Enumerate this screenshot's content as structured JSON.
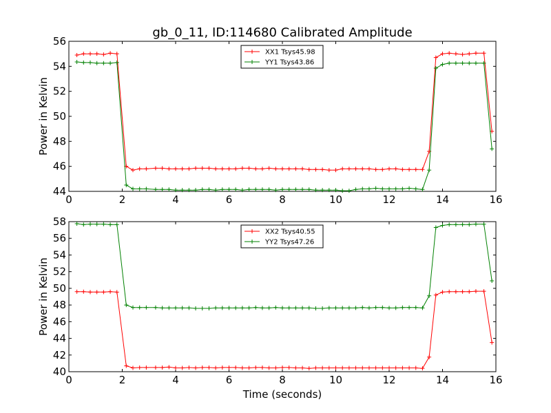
{
  "title": "gb_0_11, ID:114680 Calibrated Amplitude",
  "xlabel": "Time (seconds)",
  "chart_data": [
    {
      "type": "line",
      "title": "gb_0_11, ID:114680 Calibrated Amplitude",
      "xlabel": "",
      "ylabel": "Power in Kelvin",
      "xlim": [
        0,
        16
      ],
      "ylim": [
        44,
        56
      ],
      "xticks": [
        0,
        2,
        4,
        6,
        8,
        10,
        12,
        14,
        16
      ],
      "yticks": [
        44,
        46,
        48,
        50,
        52,
        54,
        56
      ],
      "legend_position": "top-center",
      "grid": false,
      "series": [
        {
          "name": "XX1 Tsys45.98",
          "color": "#ff0000",
          "marker": "plus",
          "x": [
            0.3,
            0.55,
            0.8,
            1.05,
            1.3,
            1.55,
            1.8,
            2.15,
            2.4,
            2.65,
            2.9,
            3.25,
            3.5,
            3.75,
            4.0,
            4.25,
            4.5,
            4.75,
            5.0,
            5.25,
            5.5,
            5.75,
            6.0,
            6.25,
            6.5,
            6.75,
            7.0,
            7.25,
            7.5,
            7.75,
            8.0,
            8.25,
            8.5,
            8.75,
            9.0,
            9.25,
            9.5,
            9.75,
            10.0,
            10.25,
            10.5,
            10.75,
            11.0,
            11.25,
            11.5,
            11.75,
            12.0,
            12.25,
            12.5,
            12.75,
            13.0,
            13.25,
            13.5,
            13.75,
            14.0,
            14.25,
            14.5,
            14.75,
            15.0,
            15.25,
            15.55,
            15.85
          ],
          "y": [
            54.9,
            55.0,
            55.0,
            55.0,
            54.95,
            55.05,
            55.0,
            46.0,
            45.7,
            45.8,
            45.8,
            45.85,
            45.85,
            45.8,
            45.8,
            45.8,
            45.8,
            45.85,
            45.85,
            45.85,
            45.8,
            45.8,
            45.8,
            45.8,
            45.85,
            45.85,
            45.8,
            45.8,
            45.85,
            45.8,
            45.8,
            45.8,
            45.8,
            45.8,
            45.75,
            45.75,
            45.75,
            45.7,
            45.7,
            45.8,
            45.8,
            45.8,
            45.8,
            45.8,
            45.75,
            45.75,
            45.8,
            45.8,
            45.75,
            45.75,
            45.75,
            45.75,
            47.2,
            54.7,
            55.0,
            55.05,
            55.0,
            54.95,
            55.0,
            55.05,
            55.05,
            48.8
          ]
        },
        {
          "name": "YY1 Tsys43.86",
          "color": "#008000",
          "marker": "plus",
          "x": [
            0.3,
            0.55,
            0.8,
            1.05,
            1.3,
            1.55,
            1.8,
            2.15,
            2.4,
            2.65,
            2.9,
            3.25,
            3.5,
            3.75,
            4.0,
            4.25,
            4.5,
            4.75,
            5.0,
            5.25,
            5.5,
            5.75,
            6.0,
            6.25,
            6.5,
            6.75,
            7.0,
            7.25,
            7.5,
            7.75,
            8.0,
            8.25,
            8.5,
            8.75,
            9.0,
            9.25,
            9.5,
            9.75,
            10.0,
            10.25,
            10.5,
            10.75,
            11.0,
            11.25,
            11.5,
            11.75,
            12.0,
            12.25,
            12.5,
            12.75,
            13.0,
            13.25,
            13.5,
            13.75,
            14.0,
            14.25,
            14.5,
            14.75,
            15.0,
            15.25,
            15.55,
            15.85
          ],
          "y": [
            54.35,
            54.3,
            54.3,
            54.25,
            54.25,
            54.25,
            54.3,
            44.5,
            44.2,
            44.2,
            44.2,
            44.15,
            44.15,
            44.15,
            44.1,
            44.1,
            44.1,
            44.1,
            44.15,
            44.15,
            44.1,
            44.15,
            44.15,
            44.15,
            44.1,
            44.15,
            44.15,
            44.15,
            44.15,
            44.1,
            44.15,
            44.15,
            44.15,
            44.15,
            44.15,
            44.1,
            44.1,
            44.1,
            44.1,
            44.05,
            44.05,
            44.15,
            44.2,
            44.2,
            44.25,
            44.2,
            44.2,
            44.2,
            44.2,
            44.25,
            44.2,
            44.15,
            45.7,
            53.85,
            54.15,
            54.25,
            54.25,
            54.25,
            54.25,
            54.25,
            54.25,
            47.4
          ]
        }
      ]
    },
    {
      "type": "line",
      "title": "",
      "xlabel": "Time (seconds)",
      "ylabel": "Power in Kelvin",
      "xlim": [
        0,
        16
      ],
      "ylim": [
        40,
        58
      ],
      "xticks": [
        0,
        2,
        4,
        6,
        8,
        10,
        12,
        14,
        16
      ],
      "yticks": [
        40,
        42,
        44,
        46,
        48,
        50,
        52,
        54,
        56,
        58
      ],
      "legend_position": "top-center",
      "grid": false,
      "series": [
        {
          "name": "XX2 Tsys40.55",
          "color": "#ff0000",
          "marker": "plus",
          "x": [
            0.3,
            0.55,
            0.8,
            1.05,
            1.3,
            1.55,
            1.8,
            2.15,
            2.4,
            2.65,
            2.9,
            3.25,
            3.5,
            3.75,
            4.0,
            4.25,
            4.5,
            4.75,
            5.0,
            5.25,
            5.5,
            5.75,
            6.0,
            6.25,
            6.5,
            6.75,
            7.0,
            7.25,
            7.5,
            7.75,
            8.0,
            8.25,
            8.5,
            8.75,
            9.0,
            9.25,
            9.5,
            9.75,
            10.0,
            10.25,
            10.5,
            10.75,
            11.0,
            11.25,
            11.5,
            11.75,
            12.0,
            12.25,
            12.5,
            12.75,
            13.0,
            13.25,
            13.5,
            13.75,
            14.0,
            14.25,
            14.5,
            14.75,
            15.0,
            15.25,
            15.55,
            15.85
          ],
          "y": [
            49.6,
            49.6,
            49.55,
            49.55,
            49.55,
            49.6,
            49.55,
            40.7,
            40.45,
            40.5,
            40.5,
            40.5,
            40.5,
            40.55,
            40.45,
            40.45,
            40.5,
            40.45,
            40.5,
            40.5,
            40.45,
            40.5,
            40.5,
            40.5,
            40.45,
            40.45,
            40.5,
            40.5,
            40.45,
            40.45,
            40.5,
            40.5,
            40.45,
            40.45,
            40.4,
            40.45,
            40.45,
            40.45,
            40.45,
            40.45,
            40.45,
            40.45,
            40.45,
            40.45,
            40.45,
            40.45,
            40.45,
            40.45,
            40.45,
            40.45,
            40.45,
            40.4,
            41.75,
            49.2,
            49.55,
            49.6,
            49.6,
            49.6,
            49.6,
            49.65,
            49.65,
            43.5
          ]
        },
        {
          "name": "YY2 Tsys47.26",
          "color": "#008000",
          "marker": "plus",
          "x": [
            0.3,
            0.55,
            0.8,
            1.05,
            1.3,
            1.55,
            1.8,
            2.15,
            2.4,
            2.65,
            2.9,
            3.25,
            3.5,
            3.75,
            4.0,
            4.25,
            4.5,
            4.75,
            5.0,
            5.25,
            5.5,
            5.75,
            6.0,
            6.25,
            6.5,
            6.75,
            7.0,
            7.25,
            7.5,
            7.75,
            8.0,
            8.25,
            8.5,
            8.75,
            9.0,
            9.25,
            9.5,
            9.75,
            10.0,
            10.25,
            10.5,
            10.75,
            11.0,
            11.25,
            11.5,
            11.75,
            12.0,
            12.25,
            12.5,
            12.75,
            13.0,
            13.25,
            13.5,
            13.75,
            14.0,
            14.25,
            14.5,
            14.75,
            15.0,
            15.25,
            15.55,
            15.85
          ],
          "y": [
            57.75,
            57.65,
            57.7,
            57.7,
            57.7,
            57.65,
            57.65,
            48.0,
            47.7,
            47.7,
            47.7,
            47.7,
            47.65,
            47.65,
            47.65,
            47.65,
            47.65,
            47.6,
            47.6,
            47.6,
            47.65,
            47.65,
            47.65,
            47.65,
            47.65,
            47.65,
            47.7,
            47.65,
            47.65,
            47.7,
            47.65,
            47.65,
            47.65,
            47.65,
            47.65,
            47.6,
            47.6,
            47.65,
            47.65,
            47.65,
            47.65,
            47.65,
            47.7,
            47.65,
            47.7,
            47.7,
            47.65,
            47.65,
            47.7,
            47.7,
            47.7,
            47.65,
            49.1,
            57.3,
            57.55,
            57.65,
            57.65,
            57.65,
            57.65,
            57.7,
            57.7,
            50.9
          ]
        }
      ]
    }
  ]
}
